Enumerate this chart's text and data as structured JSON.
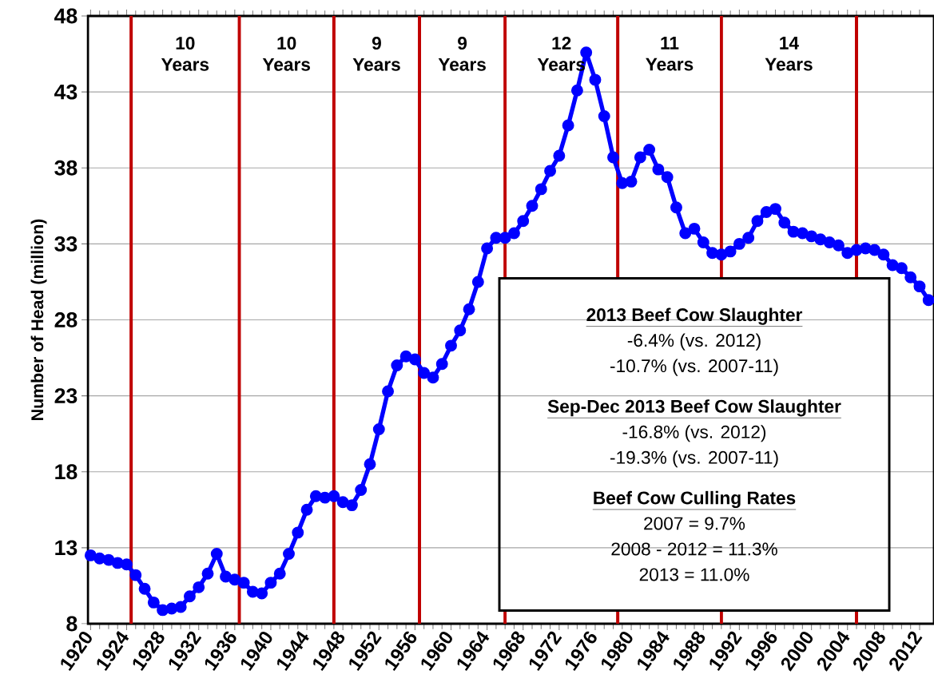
{
  "chart_data": {
    "type": "line",
    "ylabel": "Number of Head (million)",
    "x": [
      1920,
      1921,
      1922,
      1923,
      1924,
      1925,
      1926,
      1927,
      1928,
      1929,
      1930,
      1931,
      1932,
      1933,
      1934,
      1935,
      1936,
      1937,
      1938,
      1939,
      1940,
      1941,
      1942,
      1943,
      1944,
      1945,
      1946,
      1947,
      1948,
      1949,
      1950,
      1951,
      1952,
      1953,
      1954,
      1955,
      1956,
      1957,
      1958,
      1959,
      1960,
      1961,
      1962,
      1963,
      1964,
      1965,
      1966,
      1967,
      1968,
      1969,
      1970,
      1971,
      1972,
      1973,
      1974,
      1975,
      1976,
      1977,
      1978,
      1979,
      1980,
      1981,
      1982,
      1983,
      1984,
      1985,
      1986,
      1987,
      1988,
      1989,
      1990,
      1991,
      1992,
      1993,
      1994,
      1995,
      1996,
      1997,
      1998,
      1999,
      2000,
      2001,
      2002,
      2003,
      2004,
      2005,
      2006,
      2007,
      2008,
      2009,
      2010,
      2011,
      2012,
      2013
    ],
    "series": [
      {
        "color": "#0000ff",
        "values": [
          12.5,
          12.3,
          12.2,
          12.0,
          11.9,
          11.2,
          10.3,
          9.4,
          8.9,
          9.0,
          9.1,
          9.8,
          10.4,
          11.3,
          12.6,
          11.1,
          10.9,
          10.7,
          10.1,
          10.0,
          10.7,
          11.3,
          12.6,
          14.0,
          15.5,
          16.4,
          16.3,
          16.4,
          16.0,
          15.8,
          16.8,
          18.5,
          20.8,
          23.3,
          25.0,
          25.6,
          25.4,
          24.5,
          24.2,
          25.1,
          26.3,
          27.3,
          28.7,
          30.5,
          32.7,
          33.4,
          33.4,
          33.7,
          34.5,
          35.5,
          36.6,
          37.8,
          38.8,
          40.8,
          43.1,
          45.6,
          43.8,
          41.4,
          38.7,
          37.0,
          37.1,
          38.7,
          39.2,
          37.9,
          37.4,
          35.4,
          33.7,
          34.0,
          33.1,
          32.4,
          32.3,
          32.5,
          33.0,
          33.4,
          34.5,
          35.1,
          35.3,
          34.4,
          33.8,
          33.7,
          33.5,
          33.3,
          33.1,
          32.9,
          32.4,
          32.6,
          32.7,
          32.6,
          32.3,
          31.6,
          31.4,
          30.8,
          30.2,
          29.3
        ]
      }
    ],
    "xlim": [
      1919.7,
      2013.6
    ],
    "xticks": [
      1920,
      1924,
      1928,
      1932,
      1936,
      1940,
      1944,
      1948,
      1952,
      1956,
      1960,
      1964,
      1968,
      1972,
      1976,
      1980,
      1984,
      1988,
      1992,
      1996,
      2000,
      2004,
      2008,
      2012
    ],
    "ylim": [
      8,
      48
    ],
    "yticks": [
      8,
      13,
      18,
      23,
      28,
      33,
      38,
      43,
      48
    ],
    "grid": "y",
    "marker": "circle",
    "line_style": "solid",
    "ref_lines": [
      {
        "axis": "x",
        "value": 1924.5,
        "color": "#c00000"
      },
      {
        "axis": "x",
        "value": 1936.5,
        "color": "#c00000"
      },
      {
        "axis": "x",
        "value": 1947,
        "color": "#c00000"
      },
      {
        "axis": "x",
        "value": 1956.5,
        "color": "#c00000"
      },
      {
        "axis": "x",
        "value": 1966,
        "color": "#c00000"
      },
      {
        "axis": "x",
        "value": 1978.5,
        "color": "#c00000"
      },
      {
        "axis": "x",
        "value": 1990,
        "color": "#c00000"
      },
      {
        "axis": "x",
        "value": 2005,
        "color": "#c00000"
      }
    ],
    "annotations": [
      "10 Years",
      "10 Years",
      "9 Years",
      "9 Years",
      "12 Years",
      "11 Years",
      "14 Years",
      "2013 Beef Cow Slaughter",
      "-6.4% (vs. 2012)",
      "-10.7% (vs. 2007-11)",
      "Sep-Dec 2013 Beef Cow Slaughter",
      "-16.8% (vs. 2012)",
      "-19.3% (vs. 2007-11)",
      "Beef Cow Culling  Rates",
      "2007 = 9.7%",
      "2008 - 2012 = 11.3%",
      "2013 = 11.0%"
    ]
  }
}
